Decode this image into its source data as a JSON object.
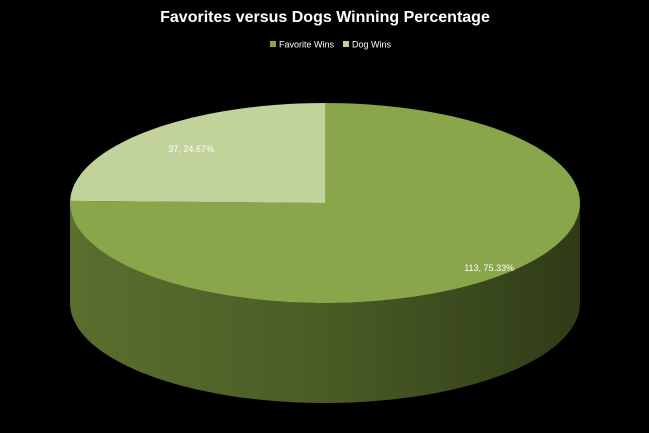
{
  "chart_data": {
    "type": "pie",
    "title": "Favorites versus Dogs Winning Percentage",
    "categories": [
      "Favorite Wins",
      "Dog Wins"
    ],
    "values": [
      113,
      37
    ],
    "value_labels": [
      "113, 75.33%",
      "37, 24.67%"
    ],
    "colors": [
      "#8aa64a",
      "#c1d39a"
    ],
    "legend": "top"
  }
}
